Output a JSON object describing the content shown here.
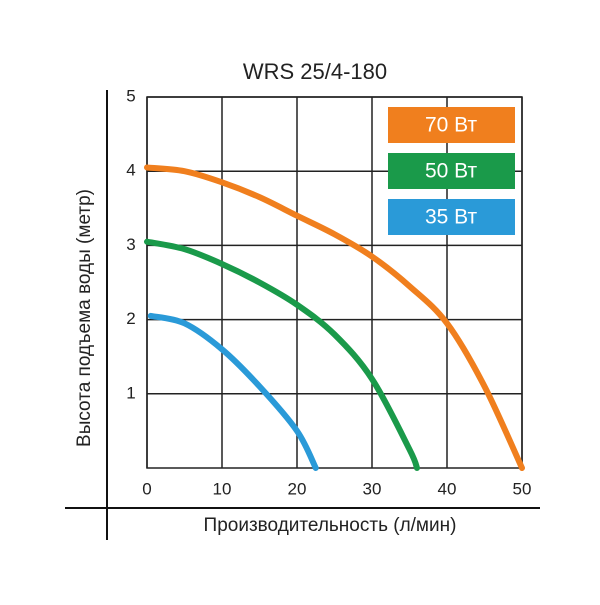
{
  "chart_data": {
    "type": "line",
    "title": "WRS 25/4-180",
    "x_label": "Производительность (л/мин)",
    "y_label": "Высота подъема воды (метр)",
    "xlim": [
      0,
      50
    ],
    "ylim": [
      0,
      5
    ],
    "xticks": [
      0,
      10,
      20,
      30,
      40,
      50
    ],
    "yticks": [
      1,
      2,
      3,
      4,
      5
    ],
    "grid": true,
    "legend": "upper right",
    "series": [
      {
        "name": "70 Вт",
        "color": "#f07f1e",
        "x": [
          0,
          5,
          10,
          15,
          20,
          25,
          30,
          35,
          40,
          45,
          50
        ],
        "values": [
          4.05,
          4.0,
          3.85,
          3.65,
          3.4,
          3.15,
          2.85,
          2.45,
          1.95,
          1.1,
          0
        ]
      },
      {
        "name": "50 Вт",
        "color": "#1a9a4a",
        "x": [
          0,
          5,
          10,
          15,
          20,
          25,
          30,
          35,
          36
        ],
        "values": [
          3.05,
          2.95,
          2.75,
          2.5,
          2.2,
          1.8,
          1.2,
          0.25,
          0
        ]
      },
      {
        "name": "35 Вт",
        "color": "#2a9ad8",
        "x": [
          0.5,
          5,
          10,
          15,
          20,
          22.5
        ],
        "values": [
          2.05,
          1.95,
          1.6,
          1.1,
          0.5,
          0
        ]
      }
    ]
  }
}
